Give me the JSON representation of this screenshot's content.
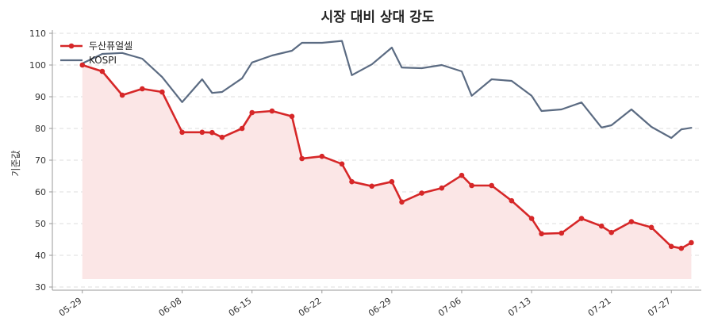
{
  "chart_data": {
    "type": "line",
    "title": "시장 대비 상대 강도",
    "xlabel": "",
    "ylabel": "기준값",
    "ylim": [
      29,
      111
    ],
    "yticks": [
      30,
      40,
      50,
      60,
      70,
      80,
      90,
      100,
      110
    ],
    "xlim": [
      "2024-05-26",
      "2024-07-30"
    ],
    "xticks": [
      {
        "date": "2024-05-29",
        "label": "05-29"
      },
      {
        "date": "2024-06-08",
        "label": "06-08"
      },
      {
        "date": "2024-06-15",
        "label": "06-15"
      },
      {
        "date": "2024-06-22",
        "label": "06-22"
      },
      {
        "date": "2024-06-29",
        "label": "06-29"
      },
      {
        "date": "2024-07-06",
        "label": "07-06"
      },
      {
        "date": "2024-07-13",
        "label": "07-13"
      },
      {
        "date": "2024-07-21",
        "label": "07-21"
      },
      {
        "date": "2024-07-27",
        "label": "07-27"
      }
    ],
    "grid": true,
    "legend_position": "top-left",
    "x": [
      "2024-05-29",
      "2024-05-31",
      "2024-06-02",
      "2024-06-04",
      "2024-06-06",
      "2024-06-08",
      "2024-06-10",
      "2024-06-11",
      "2024-06-12",
      "2024-06-14",
      "2024-06-15",
      "2024-06-17",
      "2024-06-19",
      "2024-06-20",
      "2024-06-22",
      "2024-06-24",
      "2024-06-25",
      "2024-06-27",
      "2024-06-29",
      "2024-06-30",
      "2024-07-02",
      "2024-07-04",
      "2024-07-06",
      "2024-07-07",
      "2024-07-09",
      "2024-07-11",
      "2024-07-13",
      "2024-07-14",
      "2024-07-16",
      "2024-07-18",
      "2024-07-20",
      "2024-07-21",
      "2024-07-23",
      "2024-07-25",
      "2024-07-27",
      "2024-07-28",
      "2024-07-29"
    ],
    "series": [
      {
        "name": "두산퓨얼셀",
        "color": "#d62728",
        "fill": "#fbe6e6",
        "markers": true,
        "values": [
          100.0,
          98.0,
          90.5,
          92.5,
          91.5,
          78.8,
          78.8,
          78.7,
          77.2,
          80.0,
          85.0,
          85.5,
          83.8,
          70.5,
          71.2,
          68.8,
          63.2,
          61.8,
          63.2,
          56.8,
          59.6,
          61.2,
          65.2,
          62.0,
          62.0,
          57.2,
          51.6,
          46.8,
          47.0,
          51.6,
          49.2,
          47.2,
          50.6,
          48.8,
          42.8,
          42.2,
          44.0
        ]
      },
      {
        "name": "KOSPI",
        "color": "#5b6b82",
        "markers": false,
        "values": [
          100.5,
          103.5,
          103.8,
          102.0,
          96.2,
          88.3,
          95.5,
          91.2,
          91.5,
          95.8,
          100.8,
          103.0,
          104.5,
          107.0,
          107.0,
          107.6,
          96.8,
          100.2,
          105.5,
          99.2,
          99.0,
          100.0,
          98.0,
          90.3,
          95.5,
          95.0,
          90.3,
          85.5,
          86.0,
          88.2,
          80.3,
          81.0,
          86.0,
          80.5,
          77.0,
          79.7,
          80.2
        ]
      }
    ]
  }
}
